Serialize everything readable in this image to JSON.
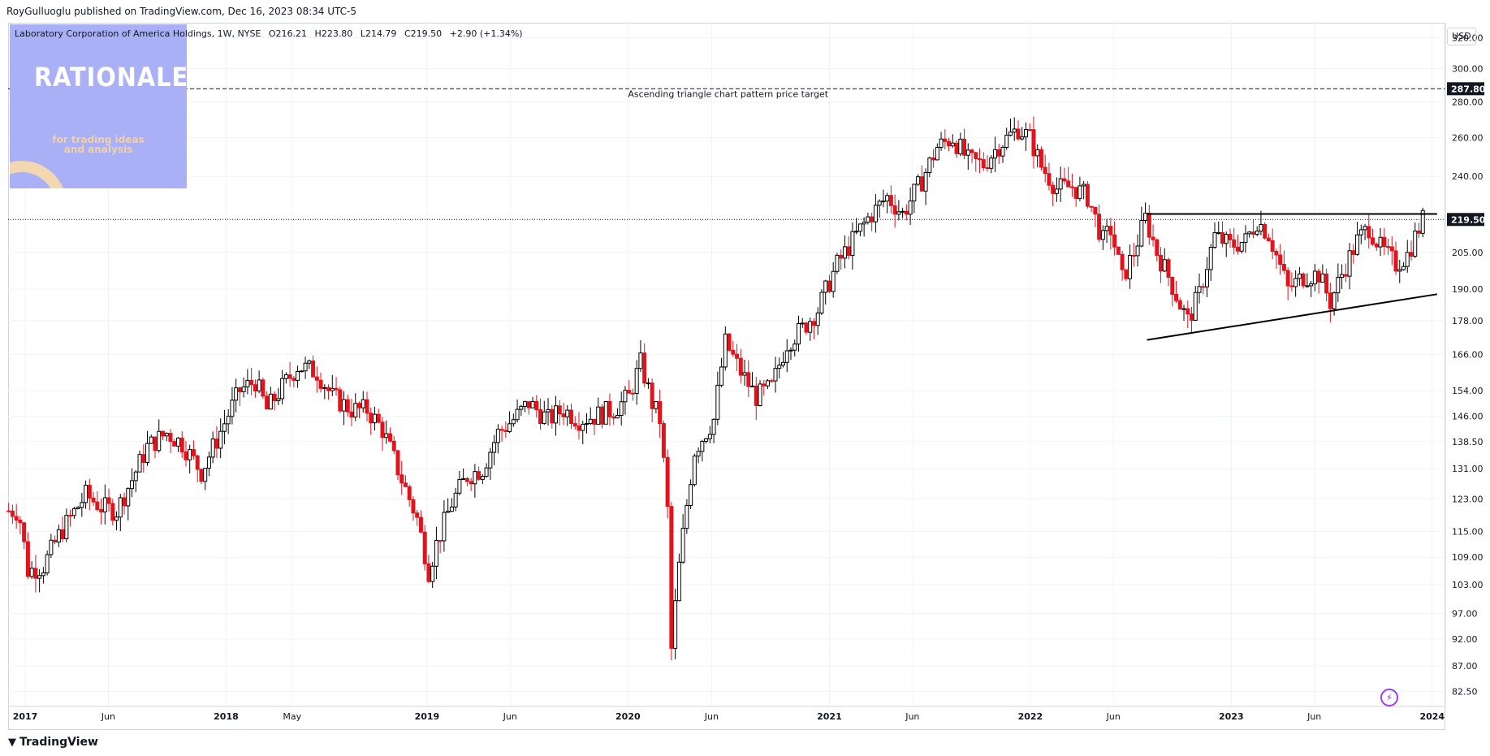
{
  "header": {
    "publisher": "RoyGulluoglu published on TradingView.com, Dec 16, 2023 08:34 UTC-5"
  },
  "legend": {
    "symbol": "Laboratory Corporation of America Holdings, 1W, NYSE",
    "open": "O216.21",
    "high": "H223.80",
    "low": "L214.79",
    "close": "C219.50",
    "change": "+2.90 (+1.34%)"
  },
  "logo": {
    "title": "RATIONALE",
    "line1": "for trading ideas",
    "line2": "and analysis"
  },
  "currency": "USD",
  "footer": {
    "brand": "TradingView"
  },
  "colors": {
    "up": "#000000",
    "down": "#e4131b",
    "grid": "#f0f3fa",
    "accent": "#131722"
  },
  "chart_data": {
    "type": "candlestick",
    "title": "Laboratory Corporation of America Holdings, 1W, NYSE",
    "y_scale": "log",
    "ylim": [
      80,
      330
    ],
    "y_ticks": [
      "320.00",
      "300.00",
      "280.00",
      "260.00",
      "240.00",
      "219.50",
      "205.00",
      "190.00",
      "178.00",
      "166.00",
      "154.00",
      "146.00",
      "138.50",
      "131.00",
      "123.00",
      "115.00",
      "109.00",
      "103.00",
      "97.00",
      "92.00",
      "87.00",
      "82.50"
    ],
    "price_labels": {
      "target": "287.80",
      "last": "219.50"
    },
    "x_ticks": [
      {
        "label": "2017",
        "date": "2017-01-01",
        "bold": true
      },
      {
        "label": "Jun",
        "date": "2017-06-01",
        "bold": false
      },
      {
        "label": "2018",
        "date": "2018-01-01",
        "bold": true
      },
      {
        "label": "May",
        "date": "2018-05-01",
        "bold": false
      },
      {
        "label": "2019",
        "date": "2019-01-01",
        "bold": true
      },
      {
        "label": "Jun",
        "date": "2019-06-01",
        "bold": false
      },
      {
        "label": "2020",
        "date": "2020-01-01",
        "bold": true
      },
      {
        "label": "Jun",
        "date": "2020-06-01",
        "bold": false
      },
      {
        "label": "2021",
        "date": "2021-01-01",
        "bold": true
      },
      {
        "label": "Jun",
        "date": "2021-06-01",
        "bold": false
      },
      {
        "label": "2022",
        "date": "2022-01-01",
        "bold": true
      },
      {
        "label": "Jun",
        "date": "2022-06-01",
        "bold": false
      },
      {
        "label": "2023",
        "date": "2023-01-01",
        "bold": true
      },
      {
        "label": "Jun",
        "date": "2023-06-01",
        "bold": false
      },
      {
        "label": "2024",
        "date": "2024-01-01",
        "bold": true
      }
    ],
    "annotations": [
      {
        "text": "Ascending triangle chart pattern price target",
        "date": "2020-07-01",
        "price": 283
      }
    ],
    "horizontal_lines": [
      {
        "price": 287.8,
        "style": "dashed"
      },
      {
        "price": 219.5,
        "style": "dotted"
      }
    ],
    "trendlines": [
      {
        "from": {
          "date": "2022-08-01",
          "price": 222
        },
        "to": {
          "date": "2024-01-10",
          "price": 222
        }
      },
      {
        "from": {
          "date": "2022-08-01",
          "price": 171
        },
        "to": {
          "date": "2024-01-10",
          "price": 188
        }
      }
    ],
    "price_path": [
      [
        "2016-12-02",
        120
      ],
      [
        "2016-12-20",
        120
      ],
      [
        "2017-01-06",
        106
      ],
      [
        "2017-02-03",
        107
      ],
      [
        "2017-03-03",
        114
      ],
      [
        "2017-04-21",
        124
      ],
      [
        "2017-05-19",
        121
      ],
      [
        "2017-06-16",
        120
      ],
      [
        "2017-07-14",
        128
      ],
      [
        "2017-08-11",
        137
      ],
      [
        "2017-09-15",
        141
      ],
      [
        "2017-10-13",
        138
      ],
      [
        "2017-11-17",
        130
      ],
      [
        "2017-12-15",
        139
      ],
      [
        "2018-01-26",
        154
      ],
      [
        "2018-02-23",
        157
      ],
      [
        "2018-03-16",
        148
      ],
      [
        "2018-04-13",
        155
      ],
      [
        "2018-05-11",
        162
      ],
      [
        "2018-06-15",
        160
      ],
      [
        "2018-07-13",
        152
      ],
      [
        "2018-08-17",
        148
      ],
      [
        "2018-09-14",
        148
      ],
      [
        "2018-10-12",
        142
      ],
      [
        "2018-11-16",
        128
      ],
      [
        "2018-12-14",
        118
      ],
      [
        "2019-01-04",
        106
      ],
      [
        "2019-01-18",
        112
      ],
      [
        "2019-02-15",
        122
      ],
      [
        "2019-03-15",
        129
      ],
      [
        "2019-04-12",
        131
      ],
      [
        "2019-05-10",
        141
      ],
      [
        "2019-06-07",
        145
      ],
      [
        "2019-07-05",
        150
      ],
      [
        "2019-08-09",
        145
      ],
      [
        "2019-09-06",
        148
      ],
      [
        "2019-10-04",
        145
      ],
      [
        "2019-11-01",
        146
      ],
      [
        "2019-12-06",
        148
      ],
      [
        "2020-01-03",
        152
      ],
      [
        "2020-01-24",
        163
      ],
      [
        "2020-02-14",
        150
      ],
      [
        "2020-02-28",
        145
      ],
      [
        "2020-03-13",
        120
      ],
      [
        "2020-03-20",
        90
      ],
      [
        "2020-04-03",
        107
      ],
      [
        "2020-05-01",
        136
      ],
      [
        "2020-06-05",
        145
      ],
      [
        "2020-06-26",
        170
      ],
      [
        "2020-07-24",
        160
      ],
      [
        "2020-08-21",
        152
      ],
      [
        "2020-09-18",
        155
      ],
      [
        "2020-10-16",
        170
      ],
      [
        "2020-11-13",
        175
      ],
      [
        "2020-12-11",
        182
      ],
      [
        "2021-01-15",
        200
      ],
      [
        "2021-02-12",
        210
      ],
      [
        "2021-03-12",
        220
      ],
      [
        "2021-04-16",
        230
      ],
      [
        "2021-05-14",
        222
      ],
      [
        "2021-06-18",
        238
      ],
      [
        "2021-07-16",
        255
      ],
      [
        "2021-08-13",
        260
      ],
      [
        "2021-09-10",
        248
      ],
      [
        "2021-10-08",
        246
      ],
      [
        "2021-11-05",
        256
      ],
      [
        "2021-12-10",
        265
      ],
      [
        "2021-12-31",
        260
      ],
      [
        "2022-01-21",
        245
      ],
      [
        "2022-02-18",
        234
      ],
      [
        "2022-03-18",
        235
      ],
      [
        "2022-04-15",
        230
      ],
      [
        "2022-05-13",
        210
      ],
      [
        "2022-05-27",
        215
      ],
      [
        "2022-06-17",
        194
      ],
      [
        "2022-07-08",
        205
      ],
      [
        "2022-07-29",
        220
      ],
      [
        "2022-08-19",
        205
      ],
      [
        "2022-09-09",
        195
      ],
      [
        "2022-09-30",
        184
      ],
      [
        "2022-10-14",
        178
      ],
      [
        "2022-11-04",
        188
      ],
      [
        "2022-12-02",
        212
      ],
      [
        "2022-12-30",
        208
      ],
      [
        "2023-01-27",
        210
      ],
      [
        "2023-02-17",
        219
      ],
      [
        "2023-03-10",
        213
      ],
      [
        "2023-04-14",
        190
      ],
      [
        "2023-05-12",
        195
      ],
      [
        "2023-06-09",
        196
      ],
      [
        "2023-06-30",
        185
      ],
      [
        "2023-07-21",
        196
      ],
      [
        "2023-08-18",
        210
      ],
      [
        "2023-09-08",
        216
      ],
      [
        "2023-09-29",
        207
      ],
      [
        "2023-10-27",
        200
      ],
      [
        "2023-11-17",
        204
      ],
      [
        "2023-12-15",
        219.5
      ]
    ]
  }
}
